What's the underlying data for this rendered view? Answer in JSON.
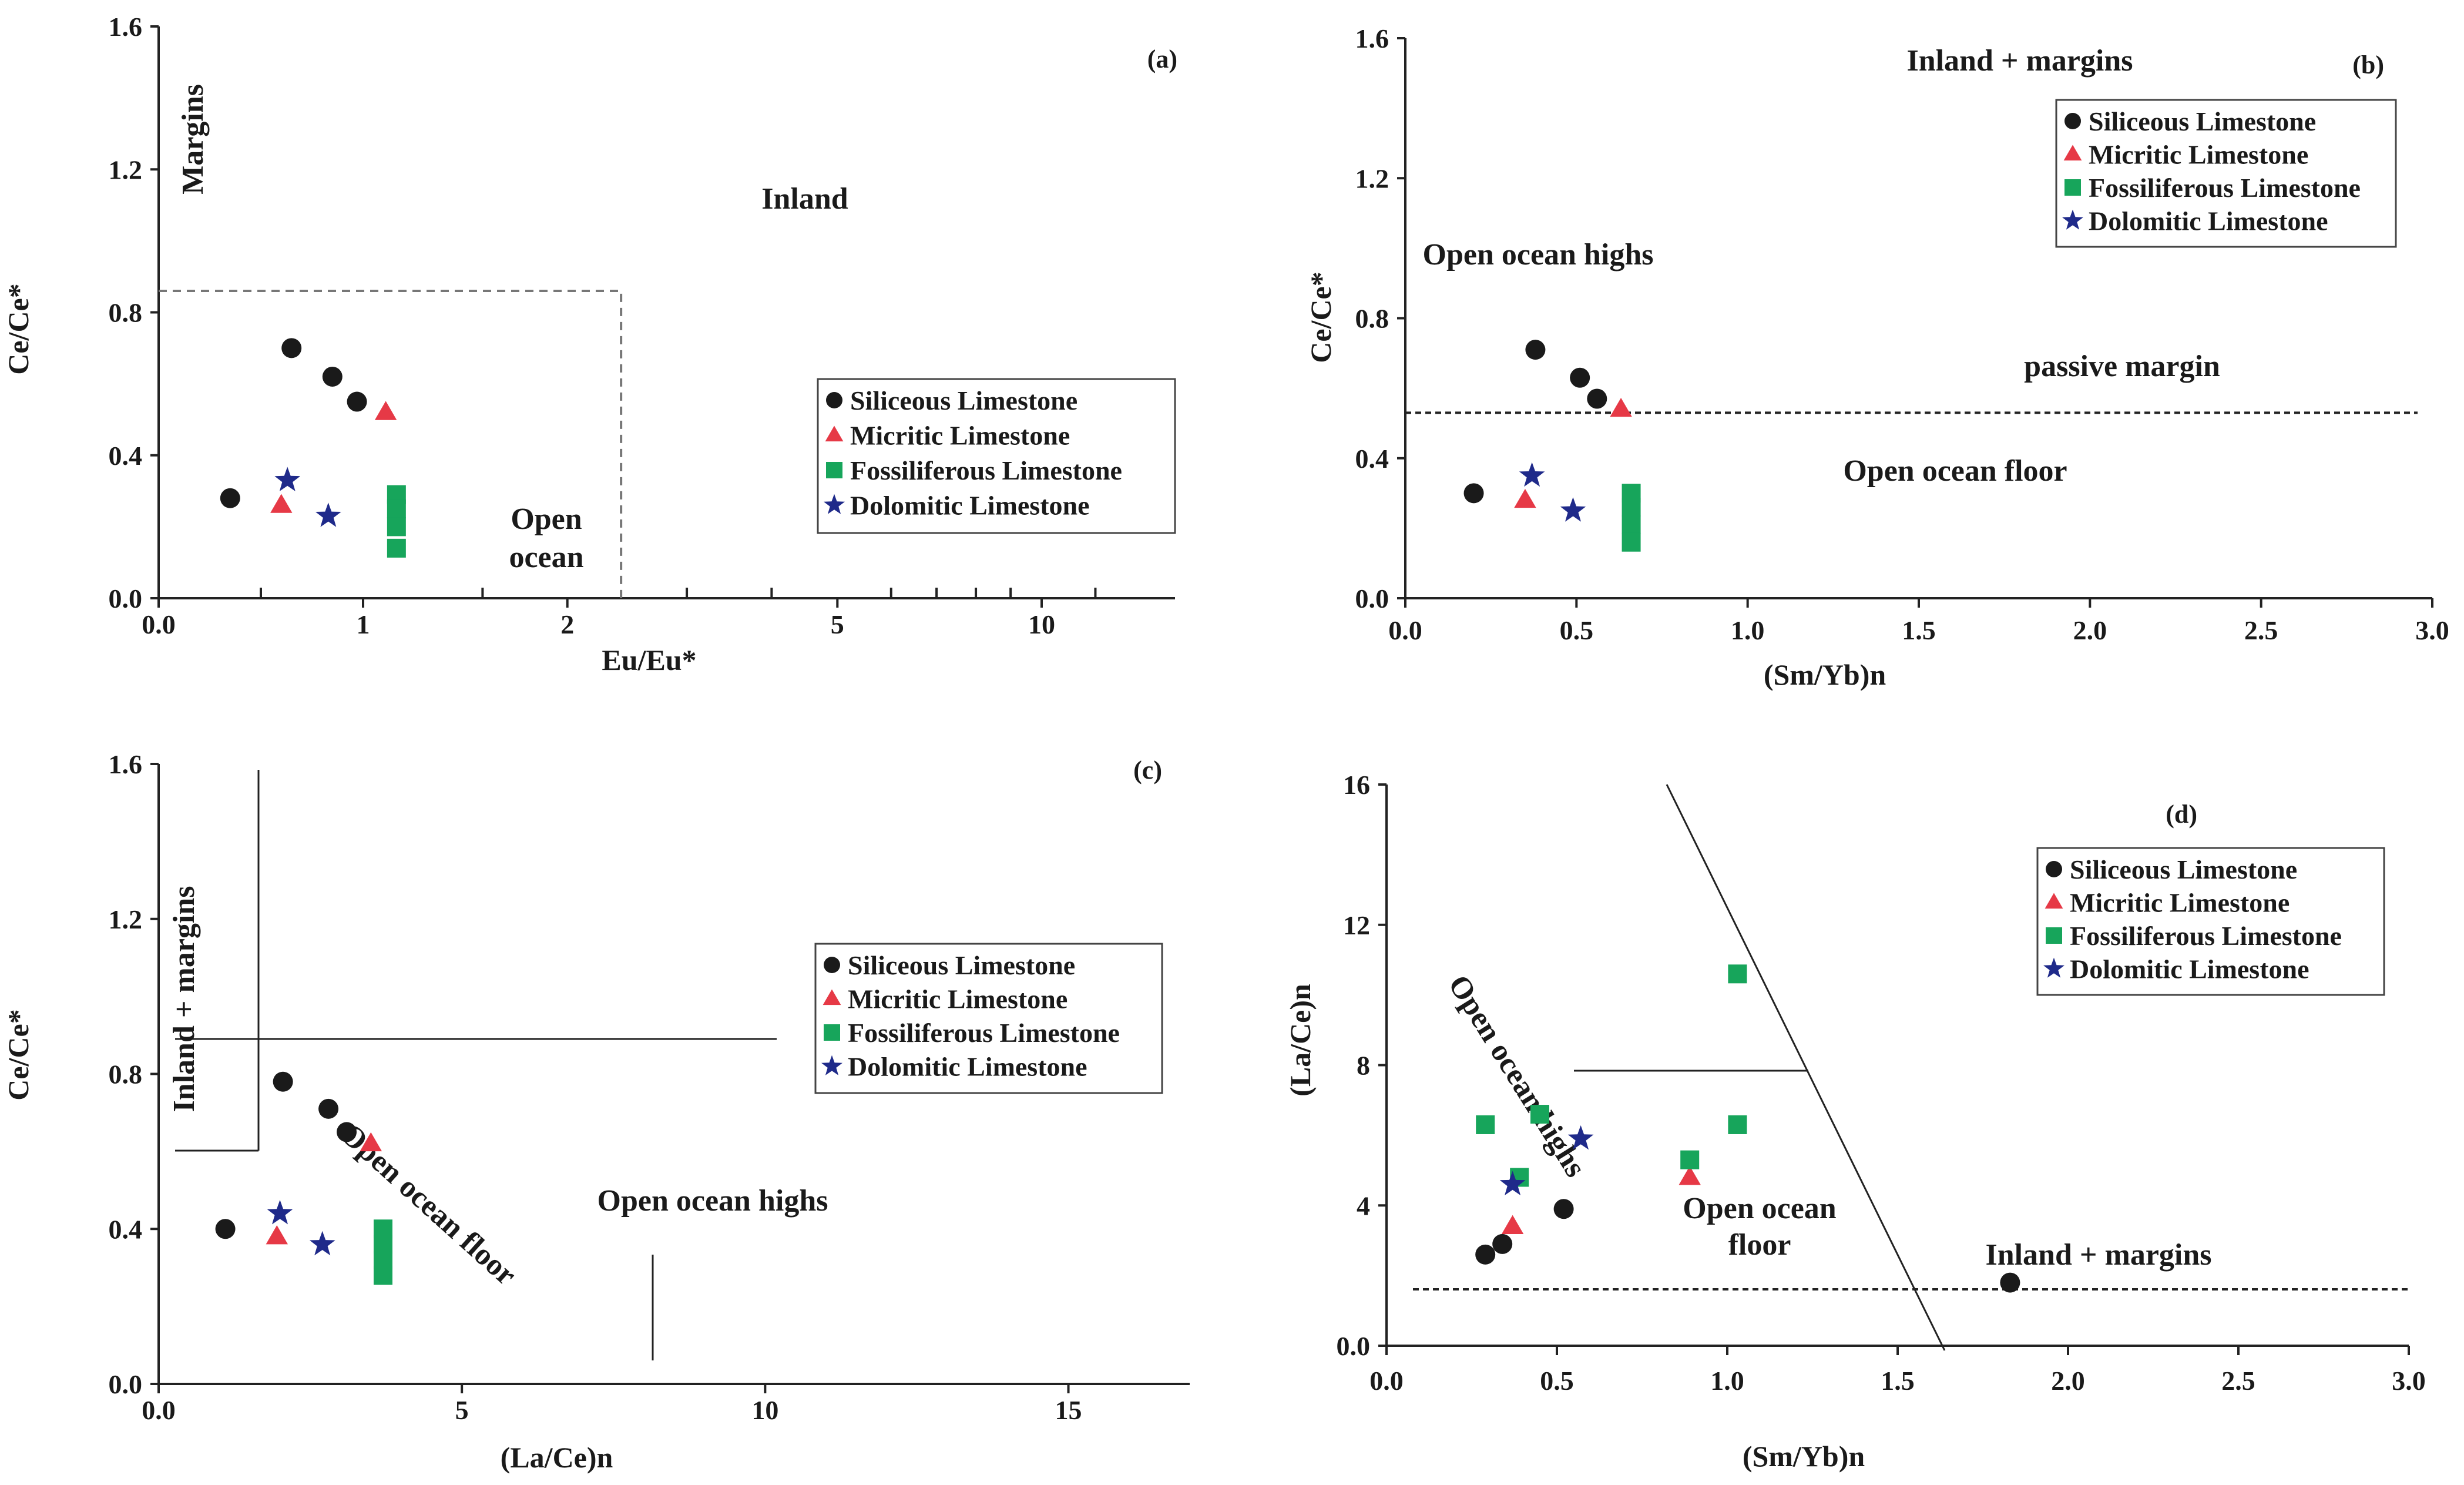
{
  "chart_data": [
    {
      "id": "a",
      "type": "scatter",
      "panel_label": "(a)",
      "title": "",
      "xlabel": "Eu/Eu*",
      "ylabel": "Ce/Ce*",
      "x_tick_labels": [
        "0.0",
        "1",
        "2",
        "5",
        "10"
      ],
      "y_tick_labels": [
        "0.0",
        "0.4",
        "0.8",
        "1.2",
        "1.6"
      ],
      "ylim": [
        0,
        1.6
      ],
      "legend_position": "lower-right",
      "region_labels": [
        "Margins",
        "Inland",
        "Open",
        "ocean"
      ],
      "series": [
        {
          "name": "Siliceous Limestone",
          "marker": "circle",
          "color": "#1a1a1a",
          "points": [
            [
              0.35,
              0.28
            ],
            [
              0.65,
              0.7
            ],
            [
              0.85,
              0.62
            ],
            [
              0.97,
              0.55
            ]
          ]
        },
        {
          "name": "Micritic Limestone",
          "marker": "triangle",
          "color": "#e63946",
          "points": [
            [
              0.6,
              0.26
            ],
            [
              1.08,
              0.52
            ]
          ]
        },
        {
          "name": "Fossiliferous Limestone",
          "marker": "square",
          "color": "#17a55b",
          "points": [
            [
              1.12,
              0.29
            ],
            [
              1.12,
              0.25
            ],
            [
              1.12,
              0.2
            ],
            [
              1.12,
              0.14
            ]
          ]
        },
        {
          "name": "Dolomitic Limestone",
          "marker": "star",
          "color": "#1f2a8a",
          "points": [
            [
              0.63,
              0.33
            ],
            [
              0.83,
              0.23
            ]
          ]
        }
      ]
    },
    {
      "id": "b",
      "type": "scatter",
      "panel_label": "(b)",
      "title": "",
      "xlabel": "(Sm/Yb)n",
      "ylabel": "Ce/Ce*",
      "x_tick_labels": [
        "0.0",
        "0.5",
        "1.0",
        "1.5",
        "2.0",
        "2.5",
        "3.0"
      ],
      "y_tick_labels": [
        "0.0",
        "0.4",
        "0.8",
        "1.2",
        "1.6"
      ],
      "xlim": [
        0,
        3.0
      ],
      "ylim": [
        0,
        1.6
      ],
      "legend_position": "top-right",
      "region_labels": [
        "Inland + margins",
        "Open ocean highs",
        "passive margin",
        "Open ocean floor"
      ],
      "series": [
        {
          "name": "Siliceous Limestone",
          "marker": "circle",
          "color": "#1a1a1a",
          "points": [
            [
              0.2,
              0.3
            ],
            [
              0.38,
              0.71
            ],
            [
              0.51,
              0.63
            ],
            [
              0.56,
              0.57
            ]
          ]
        },
        {
          "name": "Micritic Limestone",
          "marker": "triangle",
          "color": "#e63946",
          "points": [
            [
              0.35,
              0.28
            ],
            [
              0.63,
              0.54
            ]
          ]
        },
        {
          "name": "Fossiliferous Limestone",
          "marker": "square",
          "color": "#17a55b",
          "points": [
            [
              0.66,
              0.3
            ],
            [
              0.66,
              0.26
            ],
            [
              0.66,
              0.21
            ],
            [
              0.66,
              0.16
            ]
          ]
        },
        {
          "name": "Dolomitic Limestone",
          "marker": "star",
          "color": "#1f2a8a",
          "points": [
            [
              0.37,
              0.35
            ],
            [
              0.49,
              0.25
            ]
          ]
        }
      ]
    },
    {
      "id": "c",
      "type": "scatter",
      "panel_label": "(c)",
      "title": "",
      "xlabel": "(La/Ce)n",
      "ylabel": "Ce/Ce*",
      "x_tick_labels": [
        "0.0",
        "5",
        "10",
        "15"
      ],
      "y_tick_labels": [
        "0.0",
        "0.4",
        "0.8",
        "1.2",
        "1.6"
      ],
      "xlim": [
        0,
        17
      ],
      "ylim": [
        0,
        1.6
      ],
      "legend_position": "right",
      "region_labels": [
        "Inland + margins",
        "Open ocean floor",
        "Open ocean highs"
      ],
      "series": [
        {
          "name": "Siliceous Limestone",
          "marker": "circle",
          "color": "#1a1a1a",
          "points": [
            [
              1.1,
              0.4
            ],
            [
              2.05,
              0.78
            ],
            [
              2.8,
              0.71
            ],
            [
              3.1,
              0.65
            ]
          ]
        },
        {
          "name": "Micritic Limestone",
          "marker": "triangle",
          "color": "#e63946",
          "points": [
            [
              1.95,
              0.38
            ],
            [
              3.5,
              0.62
            ]
          ]
        },
        {
          "name": "Fossiliferous Limestone",
          "marker": "square",
          "color": "#17a55b",
          "points": [
            [
              3.7,
              0.4
            ],
            [
              3.7,
              0.36
            ],
            [
              3.7,
              0.32
            ],
            [
              3.7,
              0.28
            ]
          ]
        },
        {
          "name": "Dolomitic Limestone",
          "marker": "star",
          "color": "#1f2a8a",
          "points": [
            [
              2.0,
              0.44
            ],
            [
              2.7,
              0.36
            ]
          ]
        }
      ]
    },
    {
      "id": "d",
      "type": "scatter",
      "panel_label": "(d)",
      "title": "",
      "xlabel": "(Sm/Yb)n",
      "ylabel": "(La/Ce)n",
      "x_tick_labels": [
        "0.0",
        "0.5",
        "1.0",
        "1.5",
        "2.0",
        "2.5",
        "3.0"
      ],
      "y_tick_labels": [
        "0.0",
        "4",
        "8",
        "12",
        "16"
      ],
      "xlim": [
        0,
        3.0
      ],
      "ylim": [
        0,
        16
      ],
      "legend_position": "top-right",
      "region_labels": [
        "Open ocean highs",
        "Open ocean",
        "floor",
        "Inland + margins"
      ],
      "series": [
        {
          "name": "Siliceous Limestone",
          "marker": "circle",
          "color": "#1a1a1a",
          "points": [
            [
              0.29,
              2.6
            ],
            [
              0.34,
              2.9
            ],
            [
              0.52,
              3.9
            ],
            [
              1.83,
              1.8
            ]
          ]
        },
        {
          "name": "Micritic Limestone",
          "marker": "triangle",
          "color": "#e63946",
          "points": [
            [
              0.37,
              3.4
            ],
            [
              0.89,
              4.8
            ]
          ]
        },
        {
          "name": "Fossiliferous Limestone",
          "marker": "square",
          "color": "#17a55b",
          "points": [
            [
              0.29,
              6.3
            ],
            [
              0.45,
              6.6
            ],
            [
              0.39,
              4.8
            ],
            [
              0.89,
              5.3
            ],
            [
              1.03,
              6.3
            ],
            [
              1.03,
              10.6
            ]
          ]
        },
        {
          "name": "Dolomitic Limestone",
          "marker": "star",
          "color": "#1f2a8a",
          "points": [
            [
              0.37,
              4.6
            ],
            [
              0.57,
              5.9
            ]
          ]
        }
      ]
    }
  ]
}
